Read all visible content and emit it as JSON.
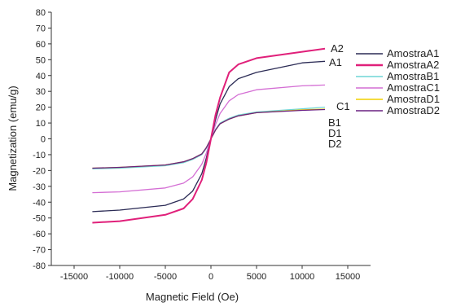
{
  "chart_data": {
    "type": "line",
    "xlabel": "Magnetic Field (Oe)",
    "ylabel": "Magnetization (emu/g)",
    "xlim": [
      -17500,
      17500
    ],
    "ylim": [
      -80,
      80
    ],
    "x_ticks": [
      -15000,
      -10000,
      -5000,
      0,
      5000,
      10000,
      15000
    ],
    "y_ticks": [
      -80,
      -70,
      -60,
      -50,
      -40,
      -30,
      -20,
      -10,
      0,
      10,
      20,
      30,
      40,
      50,
      60,
      70,
      80
    ],
    "grid": false,
    "legend_position": "right",
    "x_range": [
      -13000,
      12500
    ],
    "series": [
      {
        "name": "AmostraA1",
        "color": "#2b2b55",
        "curve_label": "A1",
        "x": [
          -13000,
          -10000,
          -5000,
          -3000,
          -2000,
          -1000,
          -500,
          0,
          500,
          1000,
          2000,
          3000,
          5000,
          10000,
          12500
        ],
        "y": [
          -46,
          -45,
          -42,
          -38,
          -33,
          -22,
          -12,
          0,
          12,
          22,
          33,
          38,
          42,
          48,
          49
        ]
      },
      {
        "name": "AmostraA2",
        "color": "#e0207a",
        "curve_label": "A2",
        "x": [
          -13000,
          -10000,
          -5000,
          -3000,
          -2000,
          -1000,
          -500,
          0,
          500,
          1000,
          2000,
          3000,
          5000,
          10000,
          12500
        ],
        "y": [
          -53,
          -52,
          -48,
          -44,
          -38,
          -26,
          -15,
          0,
          15,
          26,
          42,
          47,
          51,
          55,
          57
        ]
      },
      {
        "name": "AmostraB1",
        "color": "#6fd6d6",
        "curve_label": "B1",
        "x": [
          -13000,
          -10000,
          -5000,
          -3000,
          -2000,
          -1000,
          -500,
          0,
          500,
          1000,
          2000,
          3000,
          5000,
          10000,
          12500
        ],
        "y": [
          -19,
          -18.5,
          -17,
          -15,
          -13,
          -10,
          -6,
          0,
          6,
          10,
          13,
          15,
          17,
          19,
          20
        ]
      },
      {
        "name": "AmostraC1",
        "color": "#d46ed4",
        "curve_label": "C1",
        "x": [
          -13000,
          -10000,
          -5000,
          -3000,
          -2000,
          -1000,
          -500,
          0,
          500,
          1000,
          2000,
          3000,
          5000,
          10000,
          12500
        ],
        "y": [
          -34,
          -33.5,
          -31,
          -28,
          -24,
          -16,
          -9,
          0,
          9,
          16,
          24,
          28,
          31,
          33.5,
          34
        ]
      },
      {
        "name": "AmostraD1",
        "color": "#f0d000",
        "curve_label": "D1",
        "x": [
          -13000,
          -10000,
          -5000,
          -3000,
          -2000,
          -1000,
          -500,
          0,
          500,
          1000,
          2000,
          3000,
          5000,
          10000,
          12500
        ],
        "y": [
          -18.5,
          -18,
          -16.5,
          -14.5,
          -12.5,
          -9.5,
          -5.5,
          0,
          5.5,
          9.5,
          12.5,
          14.5,
          16.5,
          18.3,
          18.8
        ]
      },
      {
        "name": "AmostraD2",
        "color": "#6a2080",
        "curve_label": "D2",
        "x": [
          -13000,
          -10000,
          -5000,
          -3000,
          -2000,
          -1000,
          -500,
          0,
          500,
          1000,
          2000,
          3000,
          5000,
          10000,
          12500
        ],
        "y": [
          -18.5,
          -18,
          -16.5,
          -14.5,
          -12.5,
          -9.5,
          -5.5,
          0,
          5.5,
          9.5,
          12.5,
          14.5,
          16.5,
          18,
          18.5
        ]
      }
    ]
  }
}
